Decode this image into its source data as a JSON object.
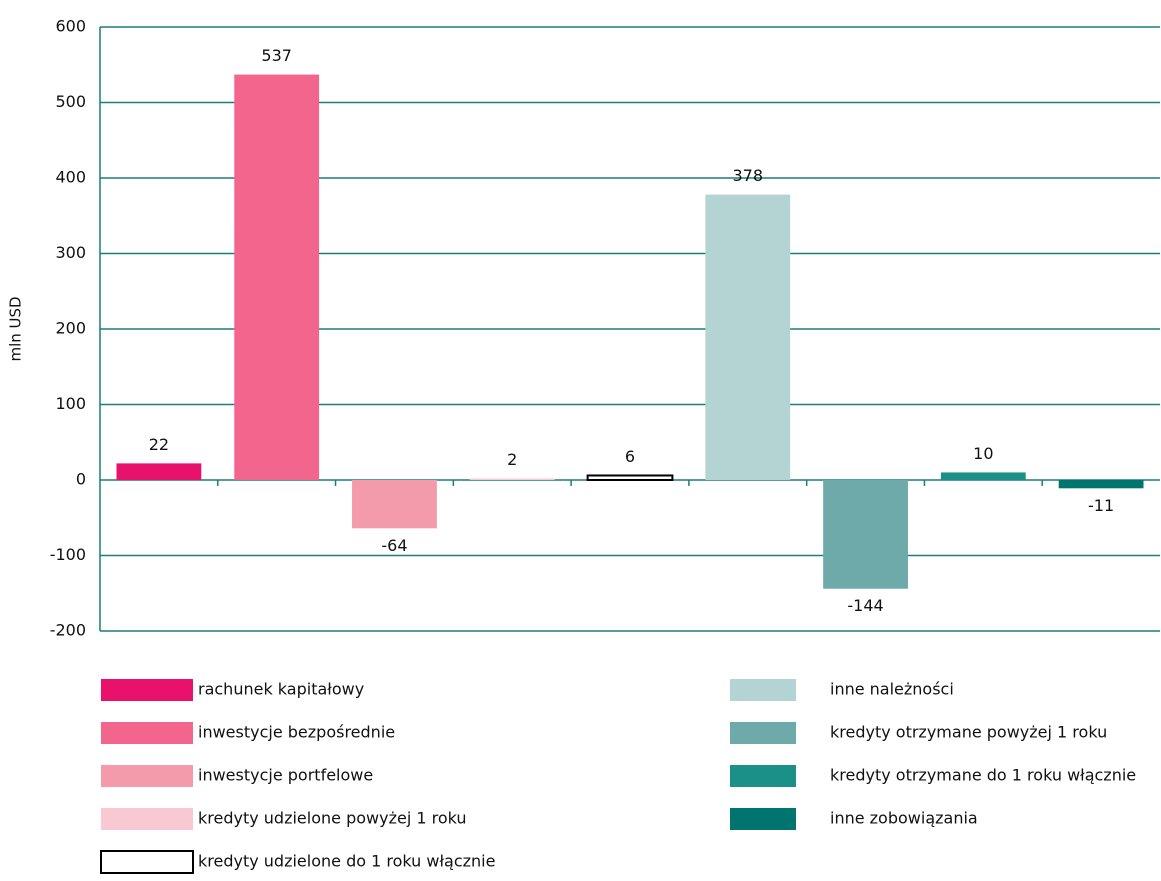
{
  "chart_data": {
    "type": "bar",
    "ylabel": "mln USD",
    "categories": [
      "rachunek kapitałowy",
      "inwestycje bezpośrednie",
      "inwestycje portfelowe",
      "kredyty udzielone powyżej 1 roku",
      "kredyty udzielone do 1 roku włącznie",
      "inne należności",
      "kredyty otrzymane powyżej 1 roku",
      "kredyty otrzymane do 1 roku włącznie",
      "inne zobowiązania"
    ],
    "values": [
      22,
      537,
      -64,
      2,
      6,
      378,
      -144,
      10,
      -11
    ],
    "colors": [
      "#e8116b",
      "#f2668d",
      "#f49bab",
      "#f9c9d3",
      "#ffffff",
      "#b3d4d2",
      "#6daaa9",
      "#1a9088",
      "#007570"
    ],
    "edgecolors": [
      null,
      null,
      null,
      null,
      "#000000",
      null,
      null,
      null,
      null
    ],
    "ylim": [
      -200,
      600
    ],
    "yticks": [
      -200,
      -100,
      0,
      100,
      200,
      300,
      400,
      500,
      600
    ],
    "grid": true,
    "grid_color": "#1a7f7a"
  }
}
